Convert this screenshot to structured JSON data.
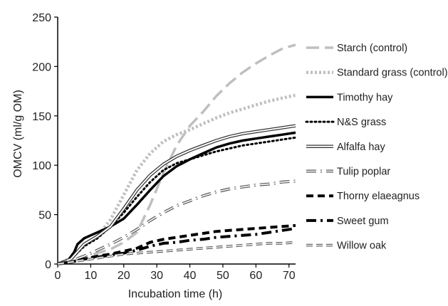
{
  "chart_data": {
    "type": "line",
    "title": "",
    "xlabel": "Incubation time (h)",
    "ylabel": "OMCV (ml/g OM)",
    "xlim": [
      0,
      72
    ],
    "ylim": [
      0,
      250
    ],
    "xticks": [
      0,
      10,
      20,
      30,
      40,
      50,
      60,
      70
    ],
    "yticks": [
      0,
      50,
      100,
      150,
      200,
      250
    ],
    "grid": false,
    "legend_position": "right",
    "series": [
      {
        "name": "Starch (control)",
        "color": "#bfbfbf",
        "style": "long-dash",
        "points": [
          [
            0,
            0
          ],
          [
            4,
            3
          ],
          [
            8,
            7
          ],
          [
            12,
            11
          ],
          [
            16,
            15
          ],
          [
            20,
            22
          ],
          [
            24,
            32
          ],
          [
            28,
            60
          ],
          [
            32,
            92
          ],
          [
            36,
            120
          ],
          [
            40,
            140
          ],
          [
            44,
            154
          ],
          [
            48,
            170
          ],
          [
            52,
            183
          ],
          [
            56,
            194
          ],
          [
            60,
            203
          ],
          [
            64,
            211
          ],
          [
            68,
            218
          ],
          [
            72,
            222
          ]
        ]
      },
      {
        "name": "Standard grass (control)",
        "color": "#bfbfbf",
        "style": "dotted-bold",
        "points": [
          [
            0,
            0
          ],
          [
            4,
            6
          ],
          [
            8,
            18
          ],
          [
            12,
            28
          ],
          [
            16,
            45
          ],
          [
            20,
            70
          ],
          [
            24,
            95
          ],
          [
            28,
            112
          ],
          [
            32,
            124
          ],
          [
            36,
            131
          ],
          [
            40,
            136
          ],
          [
            44,
            142
          ],
          [
            48,
            148
          ],
          [
            52,
            153
          ],
          [
            56,
            157
          ],
          [
            60,
            161
          ],
          [
            64,
            165
          ],
          [
            68,
            168
          ],
          [
            72,
            171
          ]
        ]
      },
      {
        "name": "Timothy hay",
        "color": "#000000",
        "style": "solid-bold",
        "points": [
          [
            0,
            0
          ],
          [
            3,
            3
          ],
          [
            5,
            12
          ],
          [
            6,
            20
          ],
          [
            8,
            26
          ],
          [
            10,
            29
          ],
          [
            12,
            32
          ],
          [
            16,
            38
          ],
          [
            20,
            46
          ],
          [
            24,
            60
          ],
          [
            28,
            75
          ],
          [
            32,
            89
          ],
          [
            36,
            99
          ],
          [
            40,
            106
          ],
          [
            44,
            112
          ],
          [
            48,
            118
          ],
          [
            52,
            122
          ],
          [
            56,
            125
          ],
          [
            60,
            127
          ],
          [
            64,
            129
          ],
          [
            68,
            131
          ],
          [
            72,
            133
          ]
        ]
      },
      {
        "name": "N&S grass",
        "color": "#000000",
        "style": "dotted",
        "points": [
          [
            0,
            0
          ],
          [
            4,
            5
          ],
          [
            8,
            18
          ],
          [
            12,
            26
          ],
          [
            16,
            38
          ],
          [
            20,
            52
          ],
          [
            24,
            68
          ],
          [
            28,
            83
          ],
          [
            32,
            95
          ],
          [
            36,
            102
          ],
          [
            40,
            106
          ],
          [
            44,
            110
          ],
          [
            48,
            114
          ],
          [
            52,
            117
          ],
          [
            56,
            120
          ],
          [
            60,
            122
          ],
          [
            64,
            124
          ],
          [
            68,
            126
          ],
          [
            72,
            128
          ]
        ]
      },
      {
        "name": "Alfalfa hay",
        "color": "#333333",
        "style": "double",
        "points": [
          [
            0,
            0
          ],
          [
            4,
            5
          ],
          [
            8,
            20
          ],
          [
            12,
            28
          ],
          [
            16,
            38
          ],
          [
            20,
            56
          ],
          [
            24,
            75
          ],
          [
            28,
            90
          ],
          [
            32,
            101
          ],
          [
            36,
            109
          ],
          [
            40,
            115
          ],
          [
            44,
            120
          ],
          [
            48,
            125
          ],
          [
            52,
            129
          ],
          [
            56,
            132
          ],
          [
            60,
            134
          ],
          [
            64,
            136
          ],
          [
            68,
            138
          ],
          [
            72,
            140
          ]
        ]
      },
      {
        "name": "Tulip poplar",
        "color": "#555555",
        "style": "dash-dot-double",
        "points": [
          [
            0,
            0
          ],
          [
            4,
            3
          ],
          [
            8,
            8
          ],
          [
            12,
            14
          ],
          [
            16,
            20
          ],
          [
            20,
            27
          ],
          [
            24,
            35
          ],
          [
            28,
            44
          ],
          [
            32,
            52
          ],
          [
            36,
            59
          ],
          [
            40,
            64
          ],
          [
            44,
            69
          ],
          [
            48,
            73
          ],
          [
            52,
            76
          ],
          [
            56,
            78
          ],
          [
            60,
            80
          ],
          [
            64,
            81
          ],
          [
            68,
            83
          ],
          [
            72,
            84
          ]
        ]
      },
      {
        "name": "Thorny elaeagnus",
        "color": "#000000",
        "style": "dash-bold",
        "points": [
          [
            0,
            0
          ],
          [
            4,
            2
          ],
          [
            8,
            5
          ],
          [
            12,
            8
          ],
          [
            16,
            10
          ],
          [
            20,
            13
          ],
          [
            24,
            16
          ],
          [
            28,
            22
          ],
          [
            32,
            25
          ],
          [
            36,
            27
          ],
          [
            40,
            29
          ],
          [
            44,
            31
          ],
          [
            48,
            33
          ],
          [
            52,
            34
          ],
          [
            56,
            35
          ],
          [
            60,
            36
          ],
          [
            64,
            37
          ],
          [
            68,
            38
          ],
          [
            72,
            39
          ]
        ]
      },
      {
        "name": "Sweet gum",
        "color": "#000000",
        "style": "dash-dot-bold",
        "points": [
          [
            0,
            0
          ],
          [
            4,
            2
          ],
          [
            8,
            5
          ],
          [
            12,
            7
          ],
          [
            16,
            9
          ],
          [
            20,
            11
          ],
          [
            24,
            14
          ],
          [
            28,
            18
          ],
          [
            32,
            21
          ],
          [
            36,
            22
          ],
          [
            40,
            24
          ],
          [
            44,
            25
          ],
          [
            48,
            27
          ],
          [
            52,
            28
          ],
          [
            56,
            29
          ],
          [
            60,
            30
          ],
          [
            64,
            32
          ],
          [
            68,
            34
          ],
          [
            72,
            36
          ]
        ]
      },
      {
        "name": "Willow oak",
        "color": "#555555",
        "style": "dash-double",
        "points": [
          [
            0,
            0
          ],
          [
            4,
            2
          ],
          [
            8,
            4
          ],
          [
            12,
            6
          ],
          [
            16,
            8
          ],
          [
            20,
            10
          ],
          [
            24,
            11
          ],
          [
            28,
            12
          ],
          [
            32,
            13
          ],
          [
            36,
            14
          ],
          [
            40,
            15
          ],
          [
            44,
            16
          ],
          [
            48,
            17
          ],
          [
            52,
            18
          ],
          [
            56,
            19
          ],
          [
            60,
            20
          ],
          [
            64,
            21
          ],
          [
            68,
            21
          ],
          [
            72,
            22
          ]
        ]
      }
    ]
  }
}
